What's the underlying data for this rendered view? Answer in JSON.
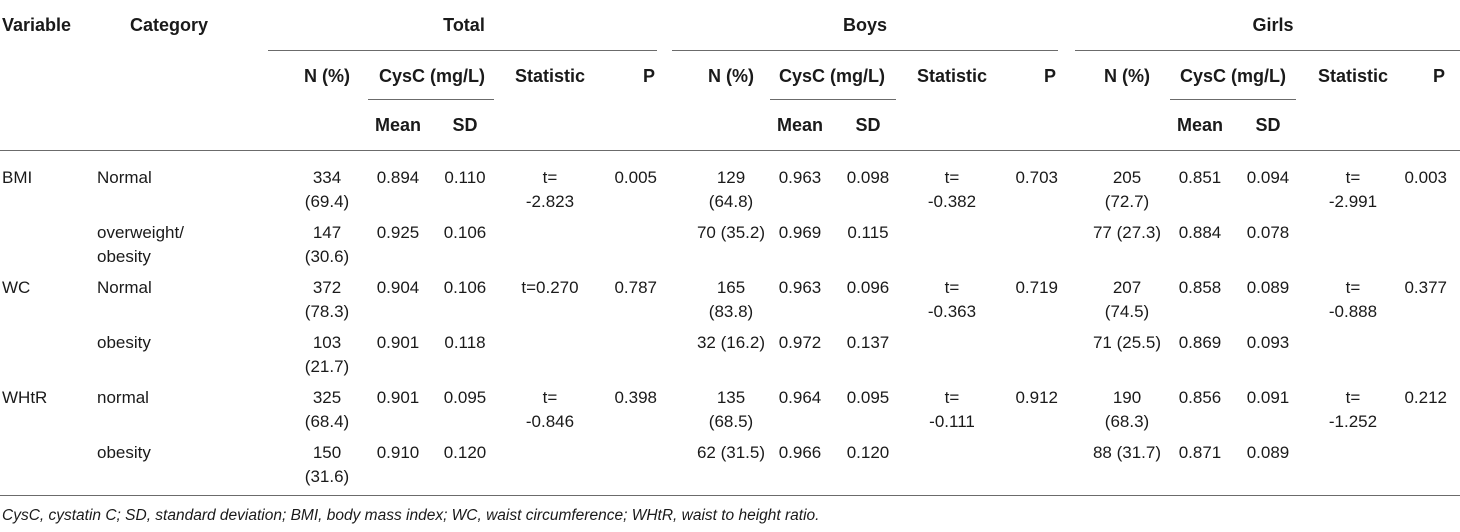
{
  "header": {
    "variable": "Variable",
    "category": "Category",
    "groups": [
      "Total",
      "Boys",
      "Girls"
    ],
    "n_pct": "N (%)",
    "cysc": "CysC (mg/L)",
    "statistic": "Statistic",
    "p": "P",
    "mean": "Mean",
    "sd": "SD"
  },
  "rows": [
    {
      "variable": "BMI",
      "category": [
        "Normal"
      ],
      "total": {
        "n": [
          "334",
          "(69.4)"
        ],
        "mean": "0.894",
        "sd": "0.110",
        "stat": [
          "t=",
          "-2.823"
        ],
        "p": "0.005"
      },
      "boys": {
        "n": [
          "129",
          "(64.8)"
        ],
        "mean": "0.963",
        "sd": "0.098",
        "stat": [
          "t=",
          "-0.382"
        ],
        "p": "0.703"
      },
      "girls": {
        "n": [
          "205",
          "(72.7)"
        ],
        "mean": "0.851",
        "sd": "0.094",
        "stat": [
          "t=",
          "-2.991"
        ],
        "p": "0.003"
      }
    },
    {
      "variable": "",
      "category": [
        "overweight/",
        "obesity"
      ],
      "total": {
        "n": [
          "147",
          "(30.6)"
        ],
        "mean": "0.925",
        "sd": "0.106"
      },
      "boys": {
        "n": [
          "70 (35.2)"
        ],
        "mean": "0.969",
        "sd": "0.115"
      },
      "girls": {
        "n": [
          "77 (27.3)"
        ],
        "mean": "0.884",
        "sd": "0.078"
      }
    },
    {
      "variable": "WC",
      "category": [
        "Normal"
      ],
      "total": {
        "n": [
          "372",
          "(78.3)"
        ],
        "mean": "0.904",
        "sd": "0.106",
        "stat": [
          "t=0.270"
        ],
        "p": "0.787"
      },
      "boys": {
        "n": [
          "165",
          "(83.8)"
        ],
        "mean": "0.963",
        "sd": "0.096",
        "stat": [
          "t=",
          "-0.363"
        ],
        "p": "0.719"
      },
      "girls": {
        "n": [
          "207",
          "(74.5)"
        ],
        "mean": "0.858",
        "sd": "0.089",
        "stat": [
          "t=",
          "-0.888"
        ],
        "p": "0.377"
      }
    },
    {
      "variable": "",
      "category": [
        "obesity"
      ],
      "total": {
        "n": [
          "103",
          "(21.7)"
        ],
        "mean": "0.901",
        "sd": "0.118"
      },
      "boys": {
        "n": [
          "32 (16.2)"
        ],
        "mean": "0.972",
        "sd": "0.137"
      },
      "girls": {
        "n": [
          "71 (25.5)"
        ],
        "mean": "0.869",
        "sd": "0.093"
      }
    },
    {
      "variable": "WHtR",
      "category": [
        "normal"
      ],
      "total": {
        "n": [
          "325",
          "(68.4)"
        ],
        "mean": "0.901",
        "sd": "0.095",
        "stat": [
          "t=",
          "-0.846"
        ],
        "p": "0.398"
      },
      "boys": {
        "n": [
          "135",
          "(68.5)"
        ],
        "mean": "0.964",
        "sd": "0.095",
        "stat": [
          "t=",
          "-0.111"
        ],
        "p": "0.912"
      },
      "girls": {
        "n": [
          "190",
          "(68.3)"
        ],
        "mean": "0.856",
        "sd": "0.091",
        "stat": [
          "t=",
          "-1.252"
        ],
        "p": "0.212"
      }
    },
    {
      "variable": "",
      "category": [
        "obesity"
      ],
      "total": {
        "n": [
          "150",
          "(31.6)"
        ],
        "mean": "0.910",
        "sd": "0.120"
      },
      "boys": {
        "n": [
          "62 (31.5)"
        ],
        "mean": "0.966",
        "sd": "0.120"
      },
      "girls": {
        "n": [
          "88 (31.7)"
        ],
        "mean": "0.871",
        "sd": "0.089"
      }
    }
  ],
  "footnote": "CysC, cystatin C; SD, standard deviation; BMI, body mass index; WC, waist circumference; WHtR, waist to height ratio."
}
